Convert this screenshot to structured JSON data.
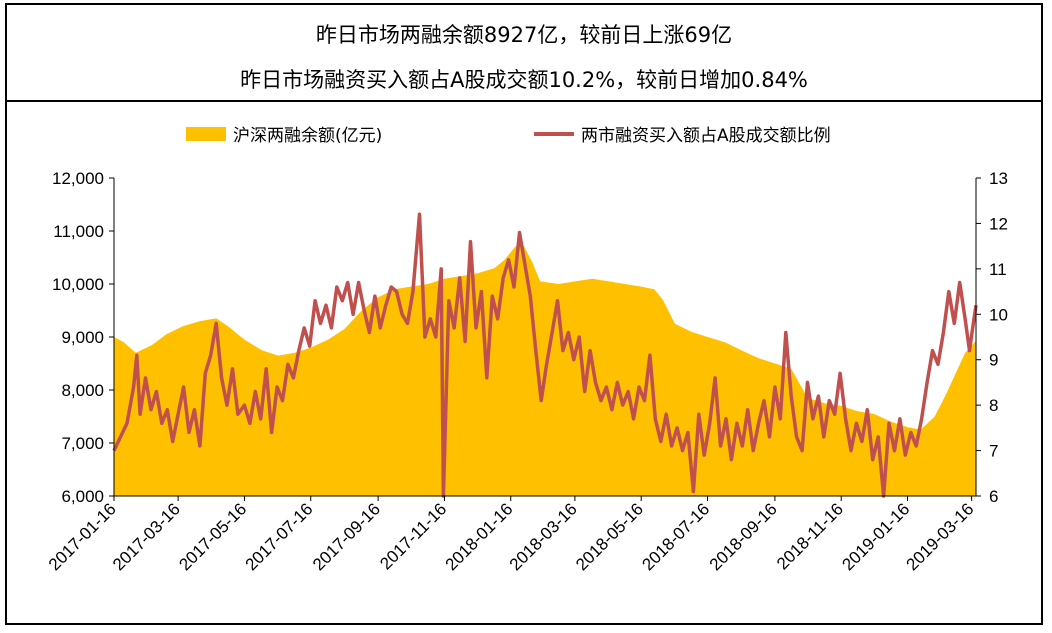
{
  "header": {
    "title_line1": "昨日市场两融余额8927亿，较前日上涨69亿",
    "title_line2": "昨日市场融资买入额占A股成交额10.2%，较前日增加0.84%"
  },
  "chart_data": {
    "type": "area+line",
    "legend_position": "top",
    "legend": [
      "沪深两融余额(亿元)",
      "两市融资买入额占A股成交额比例"
    ],
    "left_axis": {
      "min": 6000,
      "max": 12000,
      "ticks": [
        "6,000",
        "7,000",
        "8,000",
        "9,000",
        "10,000",
        "11,000",
        "12,000"
      ]
    },
    "right_axis": {
      "min": 6,
      "max": 13,
      "ticks": [
        "6",
        "7",
        "8",
        "9",
        "10",
        "11",
        "12",
        "13"
      ]
    },
    "x_range": [
      "2017-01-16",
      "2019-03-20"
    ],
    "x_ticks": [
      "2017-01-16",
      "2017-03-16",
      "2017-05-16",
      "2017-07-16",
      "2017-09-16",
      "2017-11-16",
      "2018-01-16",
      "2018-03-16",
      "2018-05-16",
      "2018-07-16",
      "2018-09-16",
      "2018-11-16",
      "2019-01-16",
      "2019-03-16"
    ],
    "series": [
      {
        "name": "沪深两融余额(亿元)",
        "axis": "left",
        "style": "area",
        "color": "#FFC000",
        "points": [
          [
            "2017-01-16",
            9000
          ],
          [
            "2017-01-25",
            8900
          ],
          [
            "2017-02-05",
            8700
          ],
          [
            "2017-02-20",
            8850
          ],
          [
            "2017-03-05",
            9050
          ],
          [
            "2017-03-20",
            9200
          ],
          [
            "2017-04-05",
            9300
          ],
          [
            "2017-04-20",
            9350
          ],
          [
            "2017-05-01",
            9200
          ],
          [
            "2017-05-16",
            8950
          ],
          [
            "2017-06-01",
            8750
          ],
          [
            "2017-06-16",
            8650
          ],
          [
            "2017-07-01",
            8700
          ],
          [
            "2017-07-16",
            8800
          ],
          [
            "2017-08-01",
            8950
          ],
          [
            "2017-08-16",
            9150
          ],
          [
            "2017-09-01",
            9500
          ],
          [
            "2017-09-16",
            9750
          ],
          [
            "2017-10-01",
            9900
          ],
          [
            "2017-10-16",
            9950
          ],
          [
            "2017-11-01",
            10000
          ],
          [
            "2017-11-16",
            10100
          ],
          [
            "2017-12-01",
            10150
          ],
          [
            "2017-12-16",
            10200
          ],
          [
            "2018-01-01",
            10300
          ],
          [
            "2018-01-10",
            10450
          ],
          [
            "2018-01-20",
            10700
          ],
          [
            "2018-01-26",
            10800
          ],
          [
            "2018-02-05",
            10400
          ],
          [
            "2018-02-12",
            10050
          ],
          [
            "2018-03-01",
            10000
          ],
          [
            "2018-03-16",
            10050
          ],
          [
            "2018-04-01",
            10100
          ],
          [
            "2018-04-16",
            10050
          ],
          [
            "2018-05-01",
            10000
          ],
          [
            "2018-05-16",
            9950
          ],
          [
            "2018-05-28",
            9900
          ],
          [
            "2018-06-05",
            9700
          ],
          [
            "2018-06-16",
            9250
          ],
          [
            "2018-07-01",
            9100
          ],
          [
            "2018-07-16",
            9000
          ],
          [
            "2018-08-01",
            8900
          ],
          [
            "2018-08-16",
            8750
          ],
          [
            "2018-09-01",
            8600
          ],
          [
            "2018-09-16",
            8500
          ],
          [
            "2018-10-01",
            8400
          ],
          [
            "2018-10-16",
            7850
          ],
          [
            "2018-11-01",
            7750
          ],
          [
            "2018-11-16",
            7700
          ],
          [
            "2018-12-01",
            7600
          ],
          [
            "2018-12-16",
            7550
          ],
          [
            "2019-01-01",
            7400
          ],
          [
            "2019-01-16",
            7300
          ],
          [
            "2019-01-28",
            7250
          ],
          [
            "2019-02-10",
            7500
          ],
          [
            "2019-02-20",
            7900
          ],
          [
            "2019-03-01",
            8300
          ],
          [
            "2019-03-10",
            8700
          ],
          [
            "2019-03-20",
            8927
          ]
        ]
      },
      {
        "name": "两市融资买入额占A股成交额比例",
        "axis": "right",
        "style": "line",
        "color": "#C0504D",
        "points": [
          [
            "2017-01-16",
            7.0
          ],
          [
            "2017-01-22",
            7.3
          ],
          [
            "2017-01-28",
            7.6
          ],
          [
            "2017-02-03",
            8.4
          ],
          [
            "2017-02-06",
            9.1
          ],
          [
            "2017-02-09",
            7.8
          ],
          [
            "2017-02-14",
            8.6
          ],
          [
            "2017-02-19",
            7.9
          ],
          [
            "2017-02-24",
            8.3
          ],
          [
            "2017-03-01",
            7.6
          ],
          [
            "2017-03-06",
            7.9
          ],
          [
            "2017-03-11",
            7.2
          ],
          [
            "2017-03-16",
            7.8
          ],
          [
            "2017-03-21",
            8.4
          ],
          [
            "2017-03-26",
            7.4
          ],
          [
            "2017-03-31",
            7.9
          ],
          [
            "2017-04-05",
            7.1
          ],
          [
            "2017-04-10",
            8.7
          ],
          [
            "2017-04-15",
            9.1
          ],
          [
            "2017-04-20",
            9.8
          ],
          [
            "2017-04-25",
            8.6
          ],
          [
            "2017-04-30",
            8.0
          ],
          [
            "2017-05-05",
            8.8
          ],
          [
            "2017-05-10",
            7.8
          ],
          [
            "2017-05-16",
            8.0
          ],
          [
            "2017-05-21",
            7.6
          ],
          [
            "2017-05-26",
            8.3
          ],
          [
            "2017-05-31",
            7.7
          ],
          [
            "2017-06-05",
            8.8
          ],
          [
            "2017-06-10",
            7.4
          ],
          [
            "2017-06-15",
            8.4
          ],
          [
            "2017-06-20",
            8.1
          ],
          [
            "2017-06-25",
            8.9
          ],
          [
            "2017-06-30",
            8.6
          ],
          [
            "2017-07-05",
            9.2
          ],
          [
            "2017-07-10",
            9.7
          ],
          [
            "2017-07-15",
            9.3
          ],
          [
            "2017-07-20",
            10.3
          ],
          [
            "2017-07-25",
            9.8
          ],
          [
            "2017-07-30",
            10.2
          ],
          [
            "2017-08-04",
            9.7
          ],
          [
            "2017-08-09",
            10.6
          ],
          [
            "2017-08-14",
            10.3
          ],
          [
            "2017-08-19",
            10.7
          ],
          [
            "2017-08-24",
            10.0
          ],
          [
            "2017-08-29",
            10.7
          ],
          [
            "2017-09-03",
            10.1
          ],
          [
            "2017-09-08",
            9.6
          ],
          [
            "2017-09-13",
            10.4
          ],
          [
            "2017-09-18",
            9.7
          ],
          [
            "2017-09-23",
            10.2
          ],
          [
            "2017-09-28",
            10.6
          ],
          [
            "2017-10-03",
            10.5
          ],
          [
            "2017-10-08",
            10.0
          ],
          [
            "2017-10-13",
            9.8
          ],
          [
            "2017-10-18",
            10.5
          ],
          [
            "2017-10-24",
            12.2
          ],
          [
            "2017-10-29",
            9.5
          ],
          [
            "2017-11-03",
            9.9
          ],
          [
            "2017-11-08",
            9.5
          ],
          [
            "2017-11-13",
            11.0
          ],
          [
            "2017-11-15",
            6.0
          ],
          [
            "2017-11-20",
            10.3
          ],
          [
            "2017-11-25",
            9.7
          ],
          [
            "2017-11-30",
            10.8
          ],
          [
            "2017-12-05",
            9.4
          ],
          [
            "2017-12-10",
            11.6
          ],
          [
            "2017-12-15",
            9.7
          ],
          [
            "2017-12-20",
            10.5
          ],
          [
            "2017-12-25",
            8.6
          ],
          [
            "2017-12-30",
            10.4
          ],
          [
            "2018-01-04",
            9.9
          ],
          [
            "2018-01-09",
            10.8
          ],
          [
            "2018-01-14",
            11.2
          ],
          [
            "2018-01-19",
            10.6
          ],
          [
            "2018-01-24",
            11.8
          ],
          [
            "2018-01-29",
            11.1
          ],
          [
            "2018-02-03",
            10.4
          ],
          [
            "2018-02-08",
            9.2
          ],
          [
            "2018-02-13",
            8.1
          ],
          [
            "2018-02-18",
            8.9
          ],
          [
            "2018-02-23",
            9.6
          ],
          [
            "2018-02-28",
            10.3
          ],
          [
            "2018-03-05",
            9.2
          ],
          [
            "2018-03-10",
            9.6
          ],
          [
            "2018-03-15",
            9.0
          ],
          [
            "2018-03-20",
            9.5
          ],
          [
            "2018-03-25",
            8.3
          ],
          [
            "2018-03-30",
            9.2
          ],
          [
            "2018-04-04",
            8.5
          ],
          [
            "2018-04-09",
            8.1
          ],
          [
            "2018-04-14",
            8.4
          ],
          [
            "2018-04-19",
            7.9
          ],
          [
            "2018-04-24",
            8.5
          ],
          [
            "2018-04-29",
            8.0
          ],
          [
            "2018-05-04",
            8.3
          ],
          [
            "2018-05-09",
            7.7
          ],
          [
            "2018-05-14",
            8.4
          ],
          [
            "2018-05-19",
            8.1
          ],
          [
            "2018-05-24",
            9.1
          ],
          [
            "2018-05-29",
            7.7
          ],
          [
            "2018-06-03",
            7.2
          ],
          [
            "2018-06-08",
            7.8
          ],
          [
            "2018-06-13",
            7.1
          ],
          [
            "2018-06-18",
            7.5
          ],
          [
            "2018-06-23",
            7.0
          ],
          [
            "2018-06-28",
            7.4
          ],
          [
            "2018-07-03",
            6.1
          ],
          [
            "2018-07-08",
            7.8
          ],
          [
            "2018-07-13",
            6.9
          ],
          [
            "2018-07-18",
            7.6
          ],
          [
            "2018-07-23",
            8.6
          ],
          [
            "2018-07-28",
            7.1
          ],
          [
            "2018-08-02",
            7.7
          ],
          [
            "2018-08-07",
            6.8
          ],
          [
            "2018-08-12",
            7.6
          ],
          [
            "2018-08-17",
            7.1
          ],
          [
            "2018-08-22",
            7.9
          ],
          [
            "2018-08-27",
            7.0
          ],
          [
            "2018-09-01",
            7.6
          ],
          [
            "2018-09-06",
            8.1
          ],
          [
            "2018-09-11",
            7.3
          ],
          [
            "2018-09-16",
            8.4
          ],
          [
            "2018-09-21",
            7.7
          ],
          [
            "2018-09-26",
            9.6
          ],
          [
            "2018-10-01",
            8.2
          ],
          [
            "2018-10-06",
            7.3
          ],
          [
            "2018-10-11",
            7.0
          ],
          [
            "2018-10-16",
            8.5
          ],
          [
            "2018-10-21",
            7.7
          ],
          [
            "2018-10-26",
            8.2
          ],
          [
            "2018-10-31",
            7.3
          ],
          [
            "2018-11-05",
            8.1
          ],
          [
            "2018-11-10",
            7.8
          ],
          [
            "2018-11-15",
            8.7
          ],
          [
            "2018-11-20",
            7.7
          ],
          [
            "2018-11-25",
            7.0
          ],
          [
            "2018-11-30",
            7.6
          ],
          [
            "2018-12-05",
            7.2
          ],
          [
            "2018-12-10",
            7.9
          ],
          [
            "2018-12-15",
            6.8
          ],
          [
            "2018-12-20",
            7.3
          ],
          [
            "2018-12-25",
            6.0
          ],
          [
            "2018-12-30",
            7.6
          ],
          [
            "2019-01-04",
            7.0
          ],
          [
            "2019-01-09",
            7.7
          ],
          [
            "2019-01-14",
            6.9
          ],
          [
            "2019-01-19",
            7.4
          ],
          [
            "2019-01-24",
            7.1
          ],
          [
            "2019-01-29",
            7.7
          ],
          [
            "2019-02-03",
            8.5
          ],
          [
            "2019-02-08",
            9.2
          ],
          [
            "2019-02-13",
            8.9
          ],
          [
            "2019-02-18",
            9.6
          ],
          [
            "2019-02-23",
            10.5
          ],
          [
            "2019-02-28",
            9.8
          ],
          [
            "2019-03-05",
            10.7
          ],
          [
            "2019-03-10",
            9.9
          ],
          [
            "2019-03-14",
            9.2
          ],
          [
            "2019-03-17",
            9.7
          ],
          [
            "2019-03-20",
            10.2
          ]
        ]
      }
    ]
  }
}
